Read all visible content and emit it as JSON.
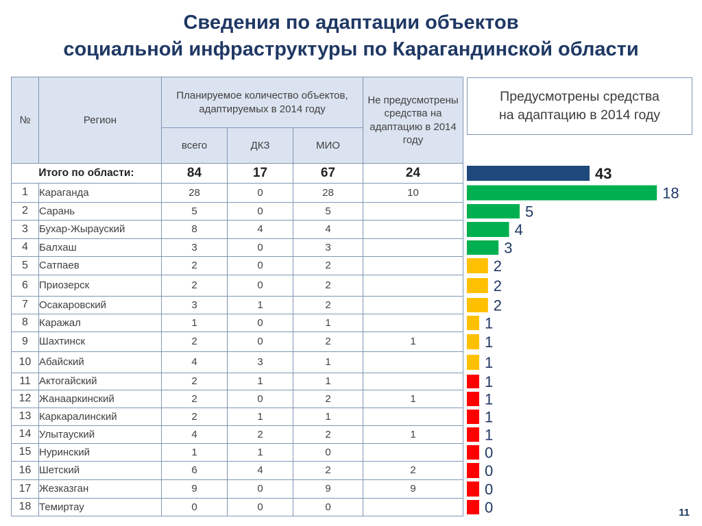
{
  "title": {
    "line1": "Сведения по адаптации объектов",
    "line2": "социальной инфраструктуры по Карагандинской области"
  },
  "table": {
    "headers": {
      "num": "№",
      "region": "Регион",
      "planned": "Планируемое количество объектов, адаптируемых в 2014 году",
      "total": "всего",
      "dkz": "ДКЗ",
      "mio": "МИО",
      "not_funded": "Не предусмотрены средства на адаптацию в 2014 году"
    },
    "total_row": {
      "label": "Итого по области:",
      "total": "84",
      "dkz": "17",
      "mio": "67",
      "not_funded": "24"
    },
    "rows": [
      {
        "n": "1",
        "region": "Караганда",
        "total": "28",
        "dkz": "0",
        "mio": "28",
        "nf": "10"
      },
      {
        "n": "2",
        "region": "Сарань",
        "total": "5",
        "dkz": "0",
        "mio": "5",
        "nf": ""
      },
      {
        "n": "3",
        "region": "Бухар-Жырауский",
        "total": "8",
        "dkz": "4",
        "mio": "4",
        "nf": ""
      },
      {
        "n": "4",
        "region": "Балхаш",
        "total": "3",
        "dkz": "0",
        "mio": "3",
        "nf": ""
      },
      {
        "n": "5",
        "region": "Сатпаев",
        "total": "2",
        "dkz": "0",
        "mio": "2",
        "nf": ""
      },
      {
        "n": "6",
        "region": "Приозерск",
        "total": "2",
        "dkz": "0",
        "mio": "2",
        "nf": ""
      },
      {
        "n": "7",
        "region": "Осакаровский",
        "total": "3",
        "dkz": "1",
        "mio": "2",
        "nf": ""
      },
      {
        "n": "8",
        "region": "Каражал",
        "total": "1",
        "dkz": "0",
        "mio": "1",
        "nf": ""
      },
      {
        "n": "9",
        "region": "Шахтинск",
        "total": "2",
        "dkz": "0",
        "mio": "2",
        "nf": "1"
      },
      {
        "n": "10",
        "region": "Абайский",
        "total": "4",
        "dkz": "3",
        "mio": "1",
        "nf": ""
      },
      {
        "n": "11",
        "region": "Актогайский",
        "total": "2",
        "dkz": "1",
        "mio": "1",
        "nf": ""
      },
      {
        "n": "12",
        "region": "Жанааркинский",
        "total": "2",
        "dkz": "0",
        "mio": "2",
        "nf": "1"
      },
      {
        "n": "13",
        "region": "Каркаралинский",
        "total": "2",
        "dkz": "1",
        "mio": "1",
        "nf": ""
      },
      {
        "n": "14",
        "region": "Улытауский",
        "total": "4",
        "dkz": "2",
        "mio": "2",
        "nf": "1"
      },
      {
        "n": "15",
        "region": "Нуринский",
        "total": "1",
        "dkz": "1",
        "mio": "0",
        "nf": ""
      },
      {
        "n": "16",
        "region": "Шетский",
        "total": "6",
        "dkz": "4",
        "mio": "2",
        "nf": "2"
      },
      {
        "n": "17",
        "region": "Жезказган",
        "total": "9",
        "dkz": "0",
        "mio": "9",
        "nf": "9"
      },
      {
        "n": "18",
        "region": "Темиртау",
        "total": "0",
        "dkz": "0",
        "mio": "0",
        "nf": ""
      }
    ]
  },
  "legend": {
    "line1": "Предусмотрены средства",
    "line2": "на адаптацию в 2014 году"
  },
  "chart_data": {
    "type": "bar",
    "orientation": "horizontal",
    "title": "Предусмотрены средства на адаптацию в 2014 году",
    "categories": [
      "Итого по области:",
      "Караганда",
      "Сарань",
      "Бухар-Жырауский",
      "Балхаш",
      "Сатпаев",
      "Приозерск",
      "Осакаровский",
      "Каражал",
      "Шахтинск",
      "Абайский",
      "Актогайский",
      "Жанааркинский",
      "Каркаралинский",
      "Улытауский",
      "Нуринский",
      "Шетский",
      "Жезказган",
      "Темиртау"
    ],
    "values": [
      43,
      18,
      5,
      4,
      3,
      2,
      2,
      2,
      1,
      1,
      1,
      1,
      1,
      1,
      1,
      0,
      0,
      0,
      0
    ],
    "labels": [
      "43",
      "18",
      "5",
      "4",
      "3",
      "2",
      "2",
      "2",
      "1",
      "1",
      "1",
      "1",
      "1",
      "1",
      "1",
      "0",
      "0",
      "0",
      "0"
    ],
    "colors": [
      "#1f497d",
      "#00b050",
      "#00b050",
      "#00b050",
      "#00b050",
      "#ffc000",
      "#ffc000",
      "#ffc000",
      "#ffc000",
      "#ffc000",
      "#ffc000",
      "#ff0000",
      "#ff0000",
      "#ff0000",
      "#ff0000",
      "#ff0000",
      "#ff0000",
      "#ff0000",
      "#ff0000"
    ]
  },
  "page_number": "11"
}
